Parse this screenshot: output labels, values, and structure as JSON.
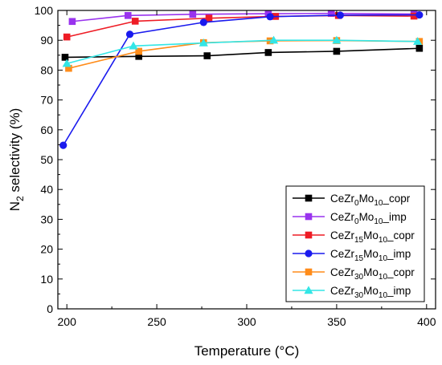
{
  "chart_data": {
    "type": "line",
    "xlabel": "Temperature (°C)",
    "ylabel_parts": [
      "N",
      "2",
      " selectivity (%)"
    ],
    "xlim": [
      195,
      405
    ],
    "ylim": [
      0,
      100
    ],
    "xticks": [
      200,
      250,
      300,
      350,
      400
    ],
    "yticks": [
      0,
      10,
      20,
      30,
      40,
      50,
      60,
      70,
      80,
      90,
      100
    ],
    "grid": false,
    "legend_position": "bottom-right",
    "series": [
      {
        "name_parts": [
          "CeZr",
          "0",
          "Mo",
          "10",
          "_copr"
        ],
        "color": "#000000",
        "marker": "square",
        "x": [
          199,
          240,
          278,
          312,
          350,
          396
        ],
        "y": [
          84.3,
          84.6,
          84.8,
          85.9,
          86.3,
          87.3
        ]
      },
      {
        "name_parts": [
          "CeZr",
          "0",
          "Mo",
          "10",
          "_imp"
        ],
        "color": "#9933ee",
        "marker": "square",
        "x": [
          203,
          234,
          270,
          312,
          347,
          393
        ],
        "y": [
          96.3,
          98.3,
          98.7,
          98.9,
          99.0,
          98.8
        ]
      },
      {
        "name_parts": [
          "CeZr",
          "15",
          "Mo",
          "10",
          "_copr"
        ],
        "color": "#ee1c25",
        "marker": "square",
        "x": [
          200,
          238,
          279,
          316,
          351,
          393
        ],
        "y": [
          91.1,
          96.4,
          97.4,
          98.0,
          98.3,
          98.1
        ]
      },
      {
        "name_parts": [
          "CeZr",
          "15",
          "Mo",
          "10",
          "_imp"
        ],
        "color": "#1a1aee",
        "marker": "circle",
        "x": [
          198,
          235,
          276,
          313,
          352,
          396
        ],
        "y": [
          54.8,
          92.0,
          96.0,
          97.9,
          98.4,
          98.5
        ]
      },
      {
        "name_parts": [
          "CeZr",
          "30",
          "Mo",
          "10",
          "_copr"
        ],
        "color": "#ff8c1a",
        "marker": "square",
        "x": [
          201,
          240,
          276,
          313,
          350,
          396
        ],
        "y": [
          80.6,
          86.3,
          89.2,
          89.8,
          89.9,
          89.6
        ]
      },
      {
        "name_parts": [
          "CeZr",
          "30",
          "Mo",
          "10",
          "_imp"
        ],
        "color": "#33e6e6",
        "marker": "triangle",
        "x": [
          200,
          237,
          276,
          315,
          350,
          395
        ],
        "y": [
          82.2,
          88.1,
          89.1,
          90.0,
          90.0,
          89.6
        ]
      }
    ]
  }
}
